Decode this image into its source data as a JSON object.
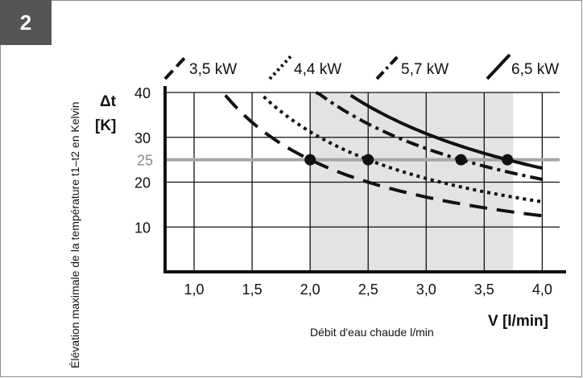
{
  "figure": {
    "number": "2"
  },
  "chart_data": {
    "type": "line",
    "xlabel": "V [l/min]",
    "xlabel_secondary": "Débit d'eau chaude l/min",
    "ylabel_top": "Δt",
    "ylabel_unit": "[K]",
    "ylabel_rotated": "Élévation maximale de la température t1–t2 en Kelvin",
    "x_ticks": [
      "1,0",
      "1,5",
      "2,0",
      "2,5",
      "3,0",
      "3,5",
      "4,0"
    ],
    "x_tick_values": [
      1.0,
      1.5,
      2.0,
      2.5,
      3.0,
      3.5,
      4.0
    ],
    "y_ticks": [
      "10",
      "20",
      "30",
      "40"
    ],
    "y_tick_values": [
      10,
      20,
      30,
      40
    ],
    "y_highlight_label": "25",
    "y_highlight_value": 25,
    "xlim": [
      0.75,
      4.15
    ],
    "ylim": [
      0,
      40
    ],
    "shaded_x_range": [
      2.0,
      3.75
    ],
    "grid": true,
    "legend_position": "top",
    "series": [
      {
        "name": "3,5 kW",
        "style": "long-dash",
        "power": 3.5,
        "x_range": [
          1.27,
          4.0
        ],
        "marker": [
          2.0,
          25
        ]
      },
      {
        "name": "4,4 kW",
        "style": "dotted",
        "power": 4.4,
        "x_range": [
          1.6,
          4.0
        ],
        "marker": [
          2.5,
          25
        ]
      },
      {
        "name": "5,7 kW",
        "style": "dash-dot",
        "power": 5.7,
        "x_range": [
          2.05,
          4.0
        ],
        "marker": [
          3.3,
          25
        ]
      },
      {
        "name": "6,5 kW",
        "style": "solid",
        "power": 6.5,
        "x_range": [
          2.35,
          4.0
        ],
        "marker": [
          3.7,
          25
        ]
      }
    ]
  },
  "colors": {
    "line": "#111111",
    "shade": "#e3e3e3",
    "highlight": "#a6a6a6",
    "badge": "#555555"
  }
}
